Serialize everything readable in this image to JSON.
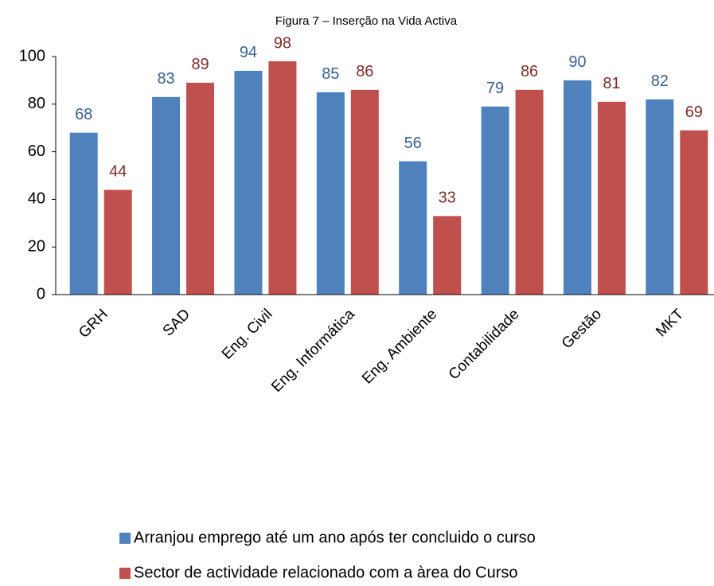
{
  "chart_data": {
    "type": "bar",
    "title": "Figura 7 – Inserção na Vida Activa",
    "categories": [
      "GRH",
      "SAD",
      "Eng. Civil",
      "Eng. Informática",
      "Eng. Ambiente",
      "Contabilidade",
      "Gestão",
      "MKT"
    ],
    "series": [
      {
        "name": "Arranjou emprego até um ano após ter concluido o curso",
        "color": "#4f81bd",
        "values": [
          68,
          83,
          94,
          85,
          56,
          79,
          90,
          82
        ]
      },
      {
        "name": "Sector de actividade relacionado com a àrea do Curso",
        "color": "#c0504d",
        "values": [
          44,
          89,
          98,
          86,
          33,
          86,
          81,
          69
        ]
      }
    ],
    "ylim": [
      0,
      100
    ],
    "yticks": [
      0,
      20,
      40,
      60,
      80,
      100
    ],
    "grid": false,
    "legend": "bottom"
  }
}
